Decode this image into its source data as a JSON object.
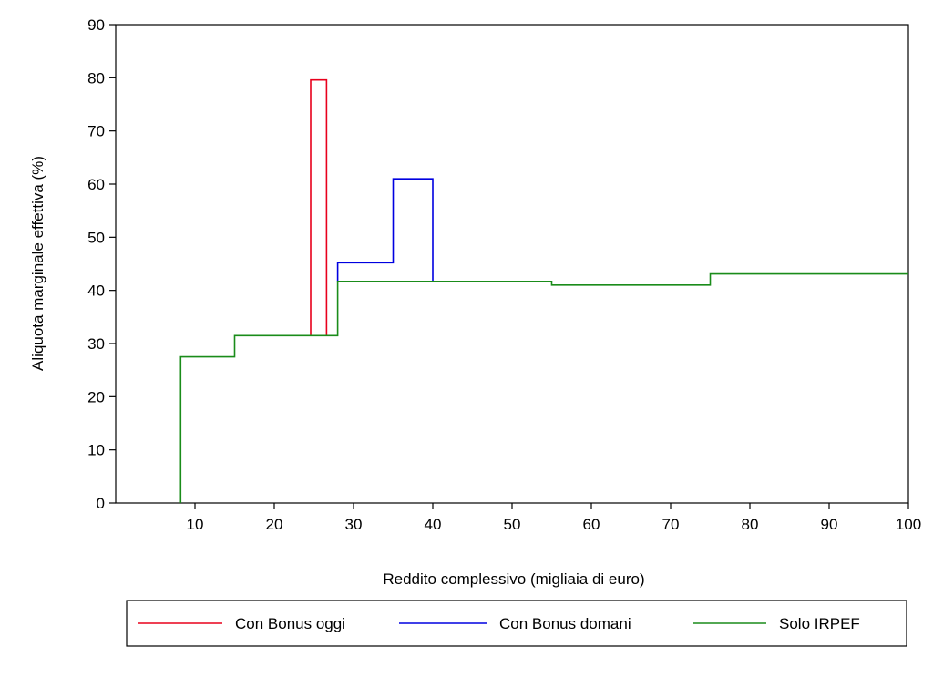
{
  "chart_data": {
    "type": "line",
    "xlabel": "Reddito complessivo (migliaia di euro)",
    "ylabel": "Aliquota marginale effettiva (%)",
    "xlim": [
      0,
      100
    ],
    "ylim": [
      0,
      90
    ],
    "x_ticks": [
      10,
      20,
      30,
      40,
      50,
      60,
      70,
      80,
      90,
      100
    ],
    "y_ticks": [
      0,
      10,
      20,
      30,
      40,
      50,
      60,
      70,
      80,
      90
    ],
    "grid": false,
    "legend_placement": "bottom",
    "series": [
      {
        "name": "Con Bonus oggi",
        "color": "#e8001c",
        "step_points": [
          [
            24.6,
            31.5
          ],
          [
            24.6,
            79.6
          ],
          [
            26.6,
            79.6
          ],
          [
            26.6,
            31.5
          ]
        ]
      },
      {
        "name": "Con Bonus domani",
        "color": "#0000e0",
        "step_points": [
          [
            28,
            41.7
          ],
          [
            28,
            45.2
          ],
          [
            35,
            45.2
          ],
          [
            35,
            61
          ],
          [
            40,
            61
          ],
          [
            40,
            41.7
          ]
        ]
      },
      {
        "name": "Solo IRPEF",
        "color": "#1a8c1a",
        "step_points": [
          [
            8.2,
            0
          ],
          [
            8.2,
            27.5
          ],
          [
            15,
            27.5
          ],
          [
            15,
            31.5
          ],
          [
            28,
            31.5
          ],
          [
            28,
            41.7
          ],
          [
            55,
            41.7
          ],
          [
            55,
            41
          ],
          [
            75,
            41
          ],
          [
            75,
            43.1
          ],
          [
            100,
            43.1
          ]
        ]
      }
    ]
  }
}
